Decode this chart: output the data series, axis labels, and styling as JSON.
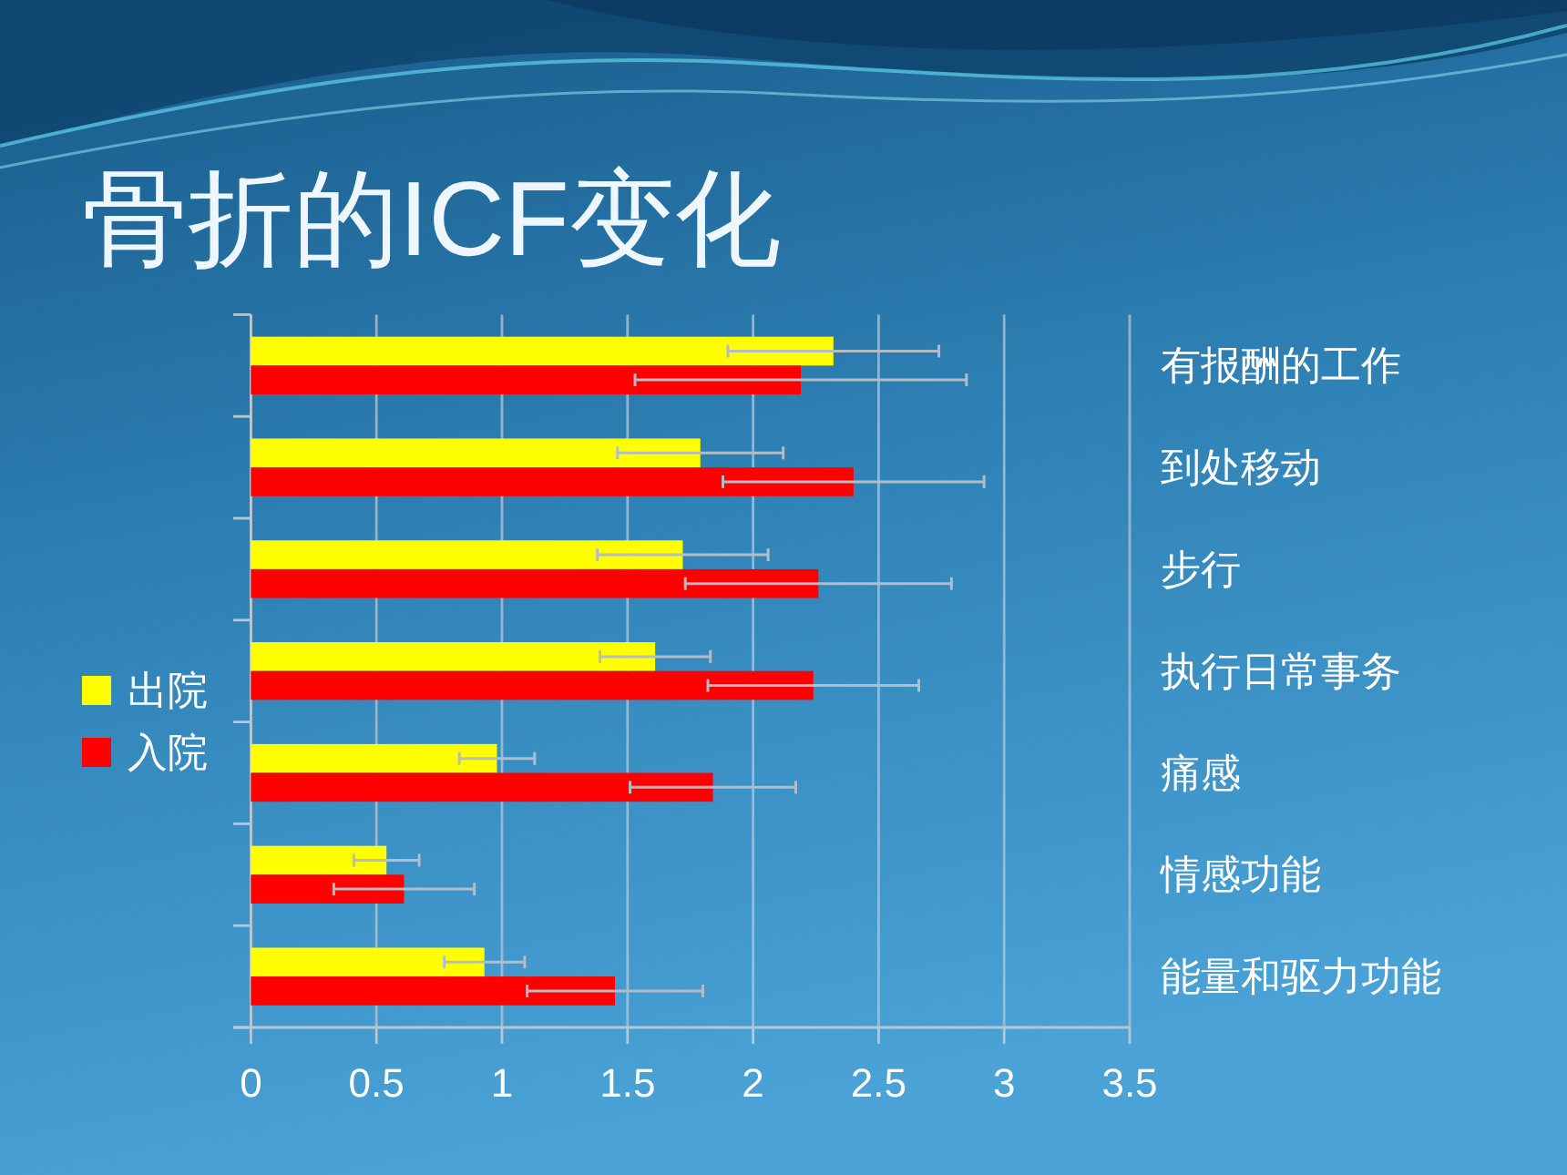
{
  "chart_data": {
    "type": "bar",
    "orientation": "horizontal",
    "title": "骨折的ICF变化",
    "categories": [
      "有报酬的工作",
      "到处移动",
      "步行",
      "执行日常事务",
      "痛感",
      "情感功能",
      "能量和驱力功能"
    ],
    "series": [
      {
        "name": "出院",
        "color": "#ffff00",
        "values": [
          2.32,
          1.79,
          1.72,
          1.61,
          0.98,
          0.54,
          0.93
        ],
        "errors": [
          0.42,
          0.33,
          0.34,
          0.22,
          0.15,
          0.13,
          0.16
        ]
      },
      {
        "name": "入院",
        "color": "#ff0000",
        "values": [
          2.19,
          2.4,
          2.26,
          2.24,
          1.84,
          0.61,
          1.45
        ],
        "errors": [
          0.66,
          0.52,
          0.53,
          0.42,
          0.33,
          0.28,
          0.35
        ]
      }
    ],
    "xlim": [
      0,
      3.5
    ],
    "xticks": [
      0,
      0.5,
      1,
      1.5,
      2,
      2.5,
      3,
      3.5
    ],
    "grid": "x",
    "legend": "left"
  }
}
